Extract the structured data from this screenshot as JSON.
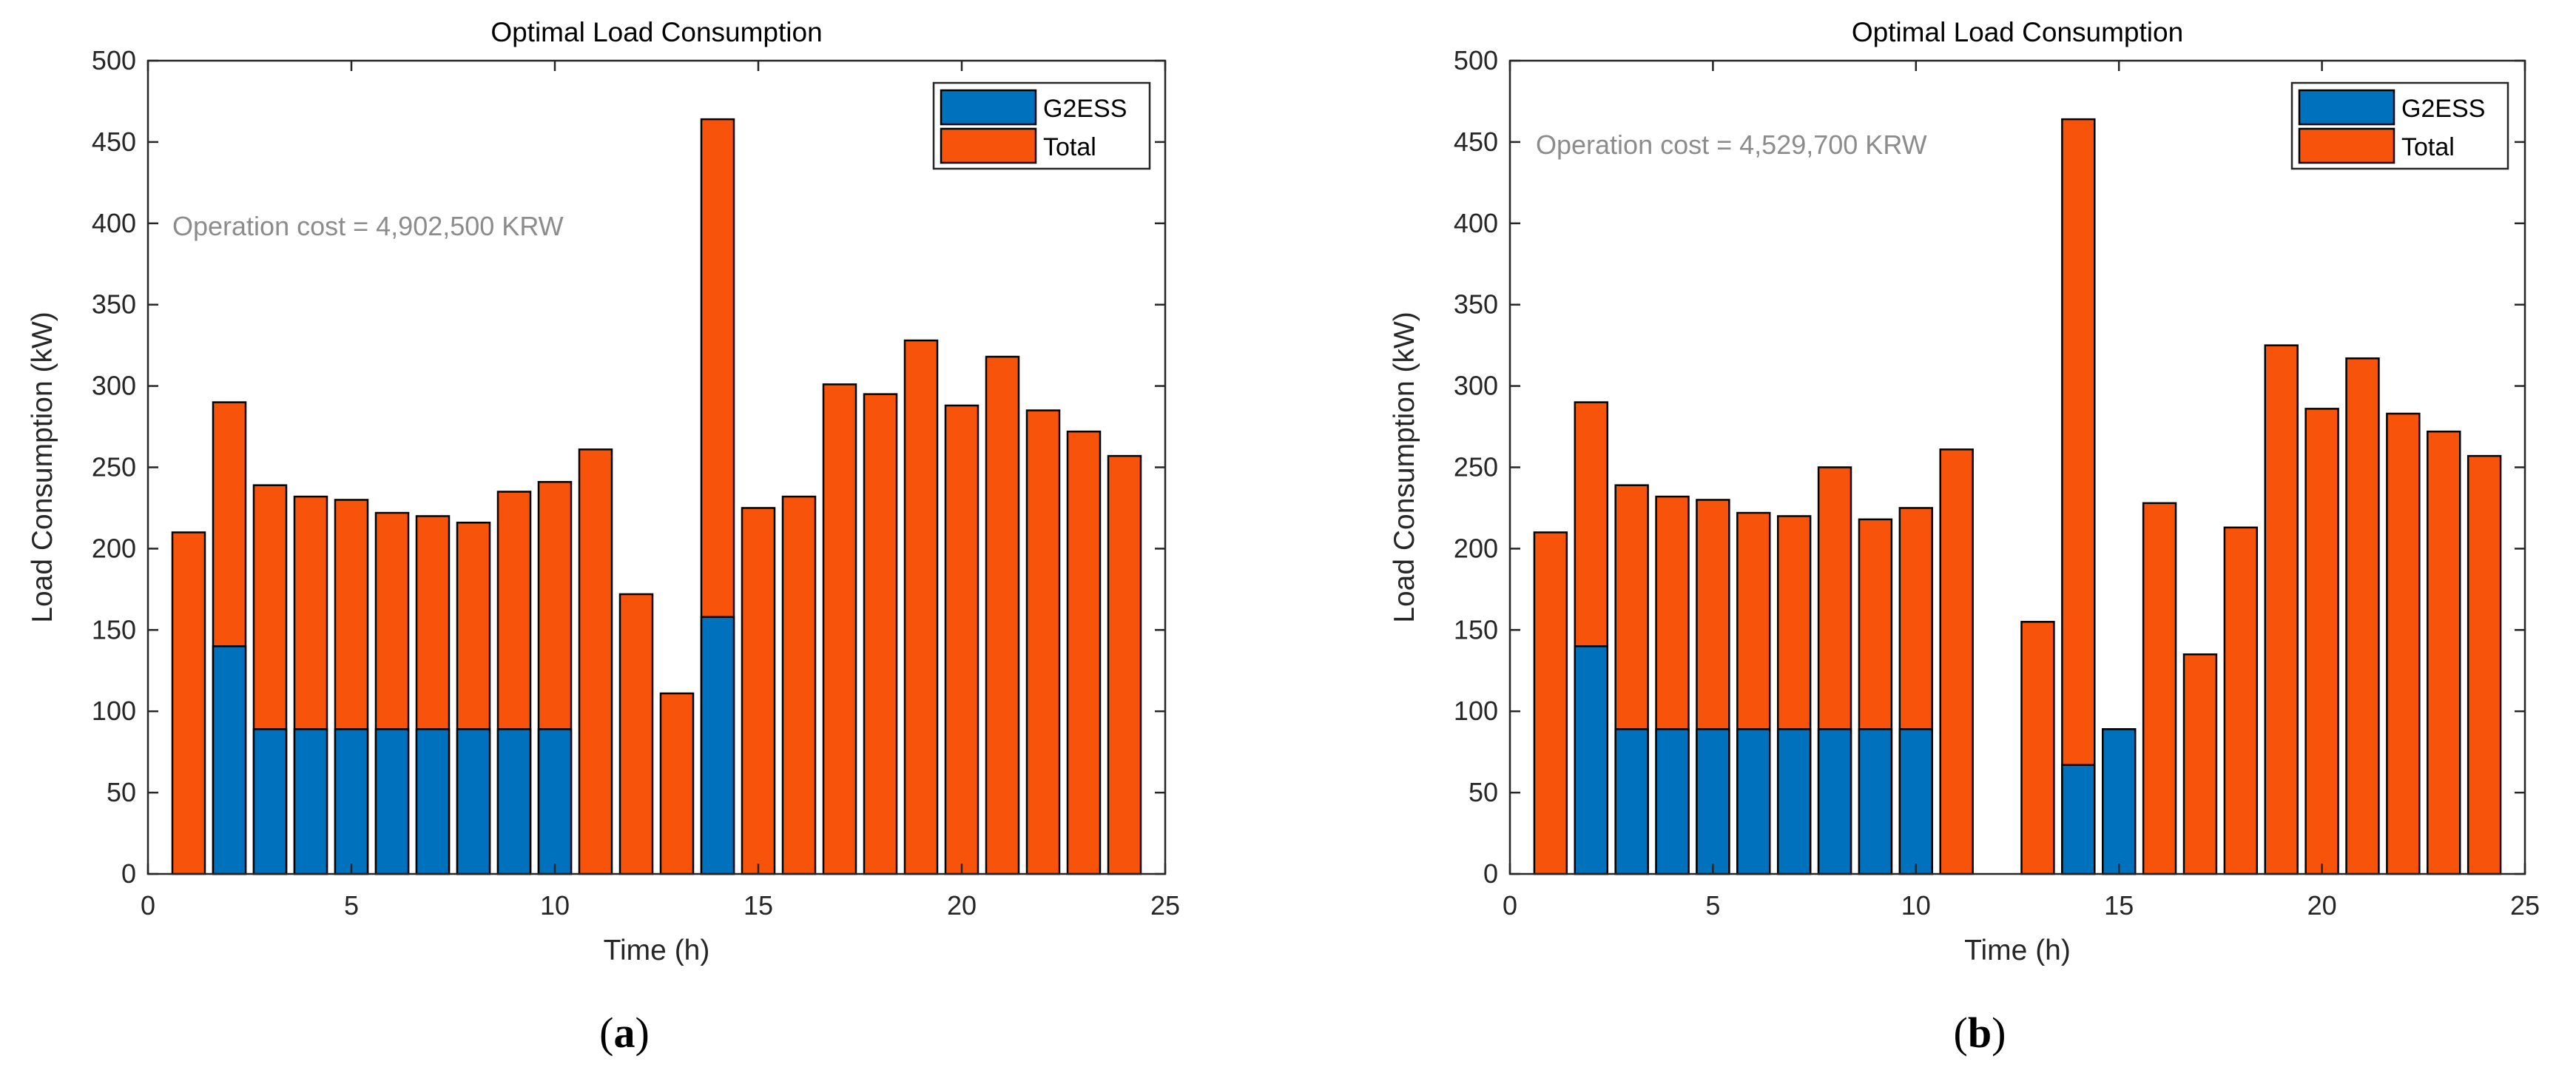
{
  "colors": {
    "g2ess": "#0072bd",
    "total": "#f7530a",
    "annotation": "#8c8c8c"
  },
  "chart_data": [
    {
      "type": "bar",
      "panel_label": "(a)",
      "caption_letter": "a",
      "title": "Optimal Load Consumption",
      "xlabel": "Time (h)",
      "ylabel": "Load Consumption (kW)",
      "xlim": [
        0,
        25
      ],
      "ylim": [
        0,
        500
      ],
      "xticks": [
        0,
        5,
        10,
        15,
        20,
        25
      ],
      "yticks": [
        0,
        50,
        100,
        150,
        200,
        250,
        300,
        350,
        400,
        450,
        500
      ],
      "grid": false,
      "legend_position": "top-right",
      "annotation": "Operation cost = 4,902,500 KRW",
      "x": [
        1,
        2,
        3,
        4,
        5,
        6,
        7,
        8,
        9,
        10,
        11,
        12,
        13,
        14,
        15,
        16,
        17,
        18,
        19,
        20,
        21,
        22,
        23,
        24
      ],
      "series": [
        {
          "name": "G2ESS",
          "values": [
            0,
            140,
            89,
            89,
            89,
            89,
            89,
            89,
            89,
            89,
            0,
            0,
            0,
            158,
            0,
            0,
            0,
            0,
            0,
            0,
            0,
            0,
            0,
            0
          ]
        },
        {
          "name": "Total",
          "values": [
            210,
            290,
            239,
            232,
            230,
            222,
            220,
            216,
            235,
            241,
            261,
            172,
            111,
            464,
            225,
            232,
            301,
            295,
            328,
            288,
            318,
            285,
            272,
            257
          ]
        }
      ]
    },
    {
      "type": "bar",
      "panel_label": "(b)",
      "caption_letter": "b",
      "title": "Optimal Load Consumption",
      "xlabel": "Time (h)",
      "ylabel": "Load Consumption (kW)",
      "xlim": [
        0,
        25
      ],
      "ylim": [
        0,
        500
      ],
      "xticks": [
        0,
        5,
        10,
        15,
        20,
        25
      ],
      "yticks": [
        0,
        50,
        100,
        150,
        200,
        250,
        300,
        350,
        400,
        450,
        500
      ],
      "grid": false,
      "legend_position": "top-right",
      "annotation": "Operation cost = 4,529,700 KRW",
      "x": [
        1,
        2,
        3,
        4,
        5,
        6,
        7,
        8,
        9,
        10,
        11,
        12,
        13,
        14,
        15,
        16,
        17,
        18,
        19,
        20,
        21,
        22,
        23,
        24
      ],
      "series": [
        {
          "name": "G2ESS",
          "values": [
            0,
            140,
            89,
            89,
            89,
            89,
            89,
            89,
            89,
            89,
            0,
            0,
            0,
            67,
            89,
            0,
            0,
            0,
            0,
            0,
            0,
            0,
            0,
            0
          ]
        },
        {
          "name": "Total",
          "values": [
            210,
            290,
            239,
            232,
            230,
            222,
            220,
            250,
            218,
            225,
            261,
            0,
            155,
            464,
            89,
            228,
            135,
            213,
            325,
            286,
            317,
            283,
            272,
            257
          ]
        }
      ]
    }
  ]
}
